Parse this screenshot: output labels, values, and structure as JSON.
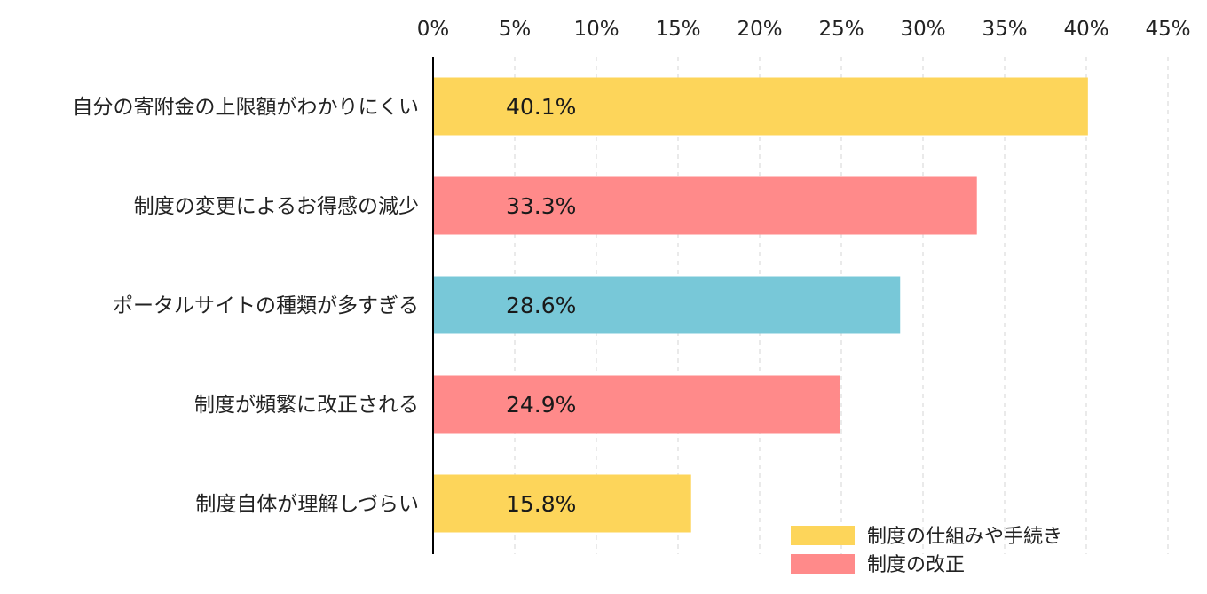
{
  "chart_data": {
    "type": "bar",
    "orientation": "horizontal",
    "categories": [
      "自分の寄附金の上限額がわかりにくい",
      "制度の変更によるお得感の減少",
      "ポータルサイトの種類が多すぎる",
      "制度が頻繁に改正される",
      "制度自体が理解しづらい"
    ],
    "values": [
      40.1,
      33.3,
      28.6,
      24.9,
      15.8
    ],
    "data_labels": [
      "40.1%",
      "33.3%",
      "28.6%",
      "24.9%",
      "15.8%"
    ],
    "bar_colors": [
      "#FDD55A",
      "#FF8A8A",
      "#78C8D8",
      "#FF8A8A",
      "#FDD55A"
    ],
    "xlim": [
      0,
      45
    ],
    "x_ticks": [
      0,
      5,
      10,
      15,
      20,
      25,
      30,
      35,
      40,
      45
    ],
    "x_tick_labels": [
      "0%",
      "5%",
      "10%",
      "15%",
      "20%",
      "25%",
      "30%",
      "35%",
      "40%",
      "45%"
    ],
    "x_axis_position": "top",
    "grid": true,
    "legend_position": "bottom-right",
    "legend": [
      {
        "label": "制度の仕組みや手続き",
        "color": "#FDD55A"
      },
      {
        "label": "制度の改正",
        "color": "#FF8A8A"
      }
    ]
  }
}
